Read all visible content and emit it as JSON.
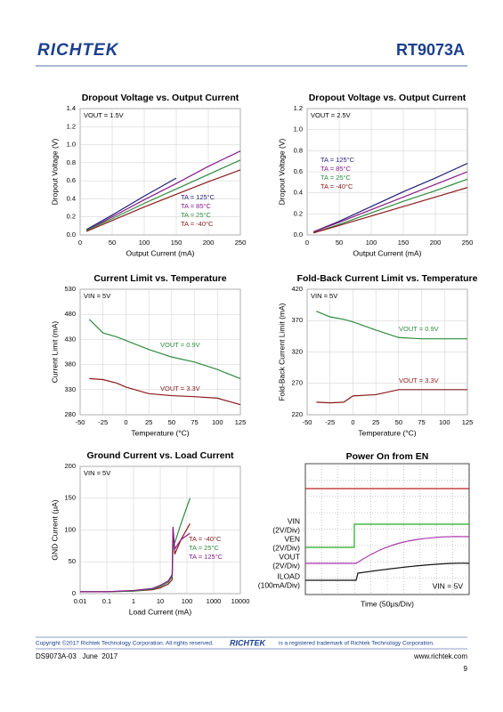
{
  "header": {
    "logo": "RICHTEK",
    "part": "RT9073A"
  },
  "chart_data": [
    {
      "type": "line",
      "title": "Dropout Voltage vs. Output Current",
      "annotation": "VOUT = 1.5V",
      "xlabel": "Output Current (mA)",
      "ylabel": "Dropout Voltage (V)",
      "x": [
        10,
        50,
        100,
        150,
        200,
        250
      ],
      "xlim": [
        0,
        250
      ],
      "xticks": [
        0,
        50,
        100,
        150,
        200,
        250
      ],
      "ylim": [
        0,
        1.4
      ],
      "yticks": [
        {
          "value": 0,
          "label": "0.0"
        },
        0.2,
        0.4,
        0.6,
        0.8,
        {
          "value": 1,
          "label": "1.0"
        },
        1.2,
        1.4
      ],
      "grid": true,
      "series": [
        {
          "name": "TA = 125°C",
          "color": "#1f1f7a",
          "values": [
            0.06,
            0.22,
            0.43,
            0.63,
            null,
            null
          ]
        },
        {
          "name": "TA = 85°C",
          "color": "#8b1a8b",
          "values": [
            0.05,
            0.2,
            0.39,
            0.57,
            0.76,
            0.93
          ]
        },
        {
          "name": "TA = 25°C",
          "color": "#2e8b3e",
          "values": [
            0.05,
            0.18,
            0.35,
            0.51,
            0.67,
            0.83
          ]
        },
        {
          "name": "TA = -40°C",
          "color": "#8b1a1a",
          "values": [
            0.04,
            0.16,
            0.31,
            0.45,
            0.59,
            0.72
          ]
        }
      ]
    },
    {
      "type": "line",
      "title": "Dropout Voltage vs. Output Current",
      "annotation": "VOUT = 2.5V",
      "xlabel": "Output Current (mA)",
      "ylabel": "Dropout Voltage (V)",
      "x": [
        10,
        50,
        100,
        150,
        200,
        250
      ],
      "xlim": [
        0,
        250
      ],
      "xticks": [
        0,
        50,
        100,
        150,
        200,
        250
      ],
      "ylim": [
        0,
        1.2
      ],
      "yticks": [
        {
          "value": 0,
          "label": "0.0"
        },
        0.2,
        0.4,
        0.6,
        0.8,
        {
          "value": 1,
          "label": "1.0"
        },
        1.2
      ],
      "grid": true,
      "series": [
        {
          "name": "TA = 125°C",
          "color": "#1f1f7a",
          "values": [
            0.03,
            0.13,
            0.27,
            0.41,
            0.54,
            0.68
          ]
        },
        {
          "name": "TA = 85°C",
          "color": "#8b1a8b",
          "values": [
            0.03,
            0.12,
            0.24,
            0.36,
            0.48,
            0.6
          ]
        },
        {
          "name": "TA = 25°C",
          "color": "#2e8b3e",
          "values": [
            0.02,
            0.1,
            0.21,
            0.32,
            0.42,
            0.53
          ]
        },
        {
          "name": "TA = -40°C",
          "color": "#8b1a1a",
          "values": [
            0.02,
            0.09,
            0.18,
            0.27,
            0.36,
            0.45
          ]
        }
      ]
    },
    {
      "type": "line",
      "title": "Current  Limit vs. Temperature",
      "annotation": "VIN = 5V",
      "xlabel": "Temperature (°C)",
      "ylabel": "Current Limit (mA)",
      "x": [
        -40,
        -25,
        -10,
        0,
        25,
        50,
        75,
        100,
        125
      ],
      "xlim": [
        -50,
        125
      ],
      "xticks": [
        -50,
        -25,
        0,
        25,
        50,
        75,
        100,
        125
      ],
      "ylim": [
        280,
        530
      ],
      "yticks": [
        280,
        330,
        380,
        430,
        480,
        530
      ],
      "grid": true,
      "series": [
        {
          "name": "VOUT = 0.9V",
          "color": "#2e8b3e",
          "values": [
            470,
            443,
            435,
            428,
            410,
            395,
            385,
            370,
            352
          ]
        },
        {
          "name": "VOUT = 3.3V",
          "color": "#8b1a1a",
          "values": [
            352,
            350,
            343,
            335,
            322,
            318,
            316,
            313,
            300
          ]
        }
      ]
    },
    {
      "type": "line",
      "title": "Fold-Back Current Limit  vs. Temperature",
      "annotation": "VIN = 5V",
      "xlabel": "Temperature (°C)",
      "ylabel": "Fold-Back Current Limit (mA)",
      "x": [
        -40,
        -25,
        -10,
        0,
        25,
        50,
        75,
        100,
        125
      ],
      "xlim": [
        -50,
        125
      ],
      "xticks": [
        -50,
        -25,
        0,
        25,
        50,
        75,
        100,
        125
      ],
      "ylim": [
        220,
        420
      ],
      "yticks": [
        220,
        270,
        320,
        370,
        420
      ],
      "grid": true,
      "series": [
        {
          "name": "VOUT = 0.9V",
          "color": "#2e8b3e",
          "values": [
            385,
            376,
            372,
            368,
            355,
            343,
            341,
            341,
            341
          ]
        },
        {
          "name": "VOUT = 3.3V",
          "color": "#8b1a1a",
          "values": [
            240,
            239,
            240,
            250,
            252,
            260,
            260,
            260,
            260
          ]
        }
      ]
    },
    {
      "type": "line",
      "title": "Ground Current vs. Load Current",
      "annotation": "VIN = 5V",
      "xlabel": "Load Current (mA)",
      "ylabel": "GND Current (μA)",
      "log_x": true,
      "x": [
        0.01,
        0.1,
        1,
        5,
        10,
        20,
        28,
        30,
        35,
        60,
        130
      ],
      "xlim": [
        0.01,
        10000
      ],
      "xticks": [
        0.01,
        0.1,
        1,
        10,
        100,
        1000,
        10000
      ],
      "ylim": [
        0,
        200
      ],
      "yticks": [
        0,
        50,
        100,
        150,
        200
      ],
      "grid": true,
      "series": [
        {
          "name": "TA = -40°C",
          "color": "#8b1a1a",
          "values": [
            3,
            3,
            4,
            6,
            9,
            15,
            22,
            100,
            62,
            85,
            110
          ]
        },
        {
          "name": "TA = 25°C",
          "color": "#2e8b3e",
          "values": [
            3,
            3,
            4,
            7,
            11,
            18,
            27,
            75,
            80,
            110,
            150
          ]
        },
        {
          "name": "TA = 125°C",
          "color": "#8b1a8b",
          "values": [
            3,
            3,
            5,
            8,
            13,
            20,
            30,
            105,
            70,
            85,
            95
          ]
        }
      ]
    }
  ],
  "scope": {
    "title": "Power On from EN",
    "labels": [
      "VIN",
      "(2V/Div)",
      "VEN",
      "(2V/Div)",
      "VOUT",
      "(2V/Div)",
      "ILOAD",
      "(100mA/Div)"
    ],
    "annotation": "VIN = 5V",
    "xlabel": "Time (50μs/Div)"
  },
  "footer": {
    "copyright": "Copyright ©2017 Richtek Technology Corporation. All rights reserved.",
    "logo": "RICHTEK",
    "trademark": "is a registered trademark of Richtek Technology Corporation.",
    "doc": "DS9073A-03   June  2017",
    "url": "www.richtek.com",
    "page": "9"
  }
}
